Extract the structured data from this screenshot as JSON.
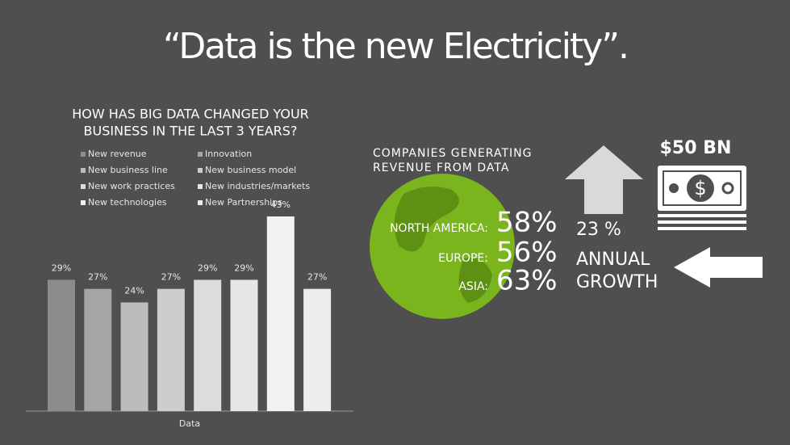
{
  "slide": {
    "title": "“Data is the new Electricity”.",
    "companies_heading_1": "COMPANIES GENERATING",
    "companies_heading_2": "REVENUE FROM DATA",
    "regions": [
      {
        "label": "NORTH AMERICA:",
        "value": "58%"
      },
      {
        "label": "EUROPE:",
        "value": "56%"
      },
      {
        "label": "ASIA:",
        "value": "63%"
      }
    ],
    "market_size": "$50 BN",
    "growth": "23 %",
    "growth_label_1": "ANNUAL",
    "growth_label_2": "GROWTH"
  },
  "chart_data": {
    "type": "bar",
    "title_1": "HOW HAS BIG DATA CHANGED YOUR",
    "title_2": "BUSINESS IN THE LAST 3 YEARS?",
    "categories": [
      "Data"
    ],
    "series": [
      {
        "name": "New revenue",
        "color": "#8c8c8c",
        "values": [
          29
        ],
        "value_labels": [
          "29%"
        ]
      },
      {
        "name": "Innovation",
        "color": "#a5a5a5",
        "values": [
          27
        ],
        "value_labels": [
          "27%"
        ]
      },
      {
        "name": "New business line",
        "color": "#bcbcbc",
        "values": [
          24
        ],
        "value_labels": [
          "24%"
        ]
      },
      {
        "name": "New business model",
        "color": "#cdcdcd",
        "values": [
          27
        ],
        "value_labels": [
          "27%"
        ]
      },
      {
        "name": "New work practices",
        "color": "#dcdcdc",
        "values": [
          29
        ],
        "value_labels": [
          "29%"
        ]
      },
      {
        "name": "New industries/markets",
        "color": "#e6e6e6",
        "values": [
          29
        ],
        "value_labels": [
          "29%"
        ]
      },
      {
        "name": "New technologies",
        "color": "#f2f2f2",
        "values": [
          43
        ],
        "value_labels": [
          "43%"
        ]
      },
      {
        "name": "New Partnerships",
        "color": "#ececec",
        "values": [
          27
        ],
        "value_labels": [
          "27%"
        ]
      }
    ]
  }
}
